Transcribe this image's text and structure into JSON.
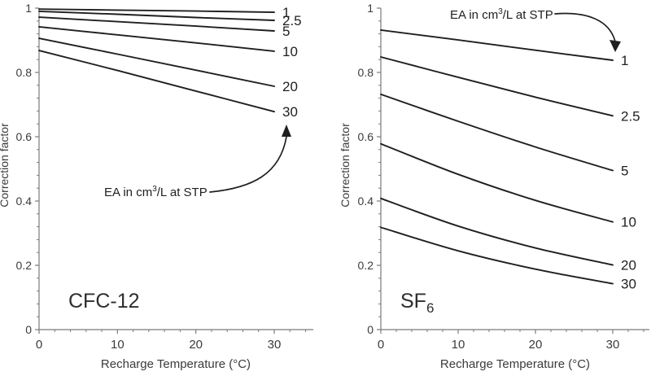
{
  "page": {
    "background": "#ffffff"
  },
  "colors": {
    "series_line": "#1f1f1f",
    "axis": "#7a7a7a",
    "tick_label": "#3b3b3b",
    "axis_title": "#3b3b3b",
    "series_label": "#1f1f1f",
    "panel_title": "#2e2e2e",
    "annotation": "#1f1f1f"
  },
  "chart_data": [
    {
      "type": "line",
      "id": "cfc12",
      "title": "CFC-12",
      "title_subscript": "",
      "xlabel": "Recharge Temperature (°C)",
      "ylabel": "Correction factor",
      "xlim": [
        0,
        35
      ],
      "ylim": [
        0,
        1
      ],
      "grid": false,
      "legend_position": "line-end-labels",
      "x": [
        0,
        10,
        20,
        30
      ],
      "xticks": [
        {
          "v": 0,
          "label": "0"
        },
        {
          "v": 10,
          "label": "10"
        },
        {
          "v": 20,
          "label": "20"
        },
        {
          "v": 30,
          "label": "30"
        }
      ],
      "yticks": [
        {
          "v": 0,
          "label": "0"
        },
        {
          "v": 0.2,
          "label": "0.2"
        },
        {
          "v": 0.4,
          "label": "0.4"
        },
        {
          "v": 0.6,
          "label": "0.6"
        },
        {
          "v": 0.8,
          "label": "0.8"
        },
        {
          "v": 1,
          "label": "1"
        }
      ],
      "x_minor_step": 2,
      "y_minor_step": 0.04,
      "series": [
        {
          "name": "1",
          "values": [
            0.997,
            0.994,
            0.991,
            0.987
          ]
        },
        {
          "name": "2.5",
          "values": [
            0.99,
            0.981,
            0.971,
            0.962
          ]
        },
        {
          "name": "5",
          "values": [
            0.972,
            0.958,
            0.944,
            0.929
          ]
        },
        {
          "name": "10",
          "values": [
            0.942,
            0.917,
            0.892,
            0.866
          ]
        },
        {
          "name": "20",
          "values": [
            0.906,
            0.857,
            0.807,
            0.757
          ]
        },
        {
          "name": "30",
          "values": [
            0.868,
            0.806,
            0.742,
            0.678
          ]
        }
      ],
      "annotation": {
        "pre": "EA in cm",
        "sup": "3",
        "post": "/L at STP"
      }
    },
    {
      "type": "line",
      "id": "sf6",
      "title": "SF",
      "title_subscript": "6",
      "xlabel": "Recharge Temperature (°C)",
      "ylabel": "Correction factor",
      "xlim": [
        0,
        35
      ],
      "ylim": [
        0,
        1
      ],
      "grid": false,
      "legend_position": "line-end-labels",
      "x": [
        0,
        10,
        20,
        30
      ],
      "xticks": [
        {
          "v": 0,
          "label": "0"
        },
        {
          "v": 10,
          "label": "10"
        },
        {
          "v": 20,
          "label": "20"
        },
        {
          "v": 30,
          "label": "30"
        }
      ],
      "yticks": [
        {
          "v": 0,
          "label": "0"
        },
        {
          "v": 0.2,
          "label": "0.2"
        },
        {
          "v": 0.4,
          "label": "0.4"
        },
        {
          "v": 0.6,
          "label": "0.6"
        },
        {
          "v": 0.8,
          "label": "0.8"
        },
        {
          "v": 1,
          "label": "1"
        }
      ],
      "x_minor_step": 2,
      "y_minor_step": 0.04,
      "series": [
        {
          "name": "1",
          "values": [
            0.932,
            0.901,
            0.869,
            0.838
          ]
        },
        {
          "name": "2.5",
          "values": [
            0.848,
            0.785,
            0.723,
            0.665
          ]
        },
        {
          "name": "5",
          "values": [
            0.732,
            0.648,
            0.568,
            0.495
          ]
        },
        {
          "name": "10",
          "values": [
            0.578,
            0.483,
            0.402,
            0.335
          ]
        },
        {
          "name": "20",
          "values": [
            0.408,
            0.322,
            0.254,
            0.201
          ]
        },
        {
          "name": "30",
          "values": [
            0.318,
            0.245,
            0.188,
            0.143
          ]
        }
      ],
      "annotation": {
        "pre": "EA in cm",
        "sup": "3",
        "post": "/L at STP"
      }
    }
  ]
}
